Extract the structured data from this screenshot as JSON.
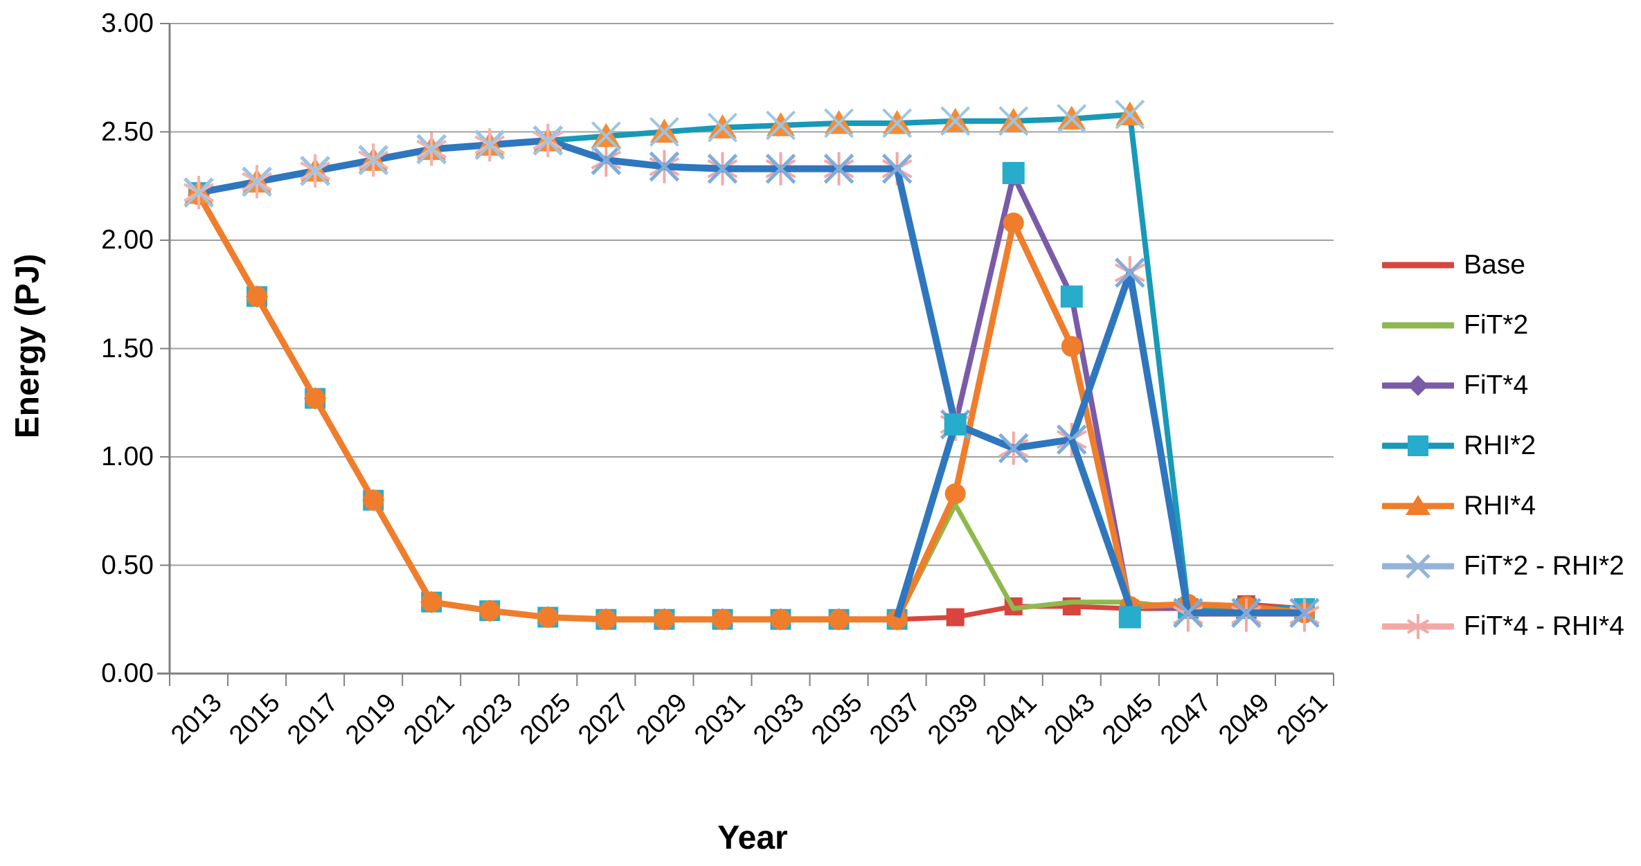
{
  "chart_data": {
    "type": "line",
    "title": "",
    "xlabel": "Year",
    "ylabel": "Energy (PJ)",
    "ylim": [
      0,
      3.0
    ],
    "grid": true,
    "legend_position": "right",
    "ytick_labels": [
      "0.00",
      "0.50",
      "1.00",
      "1.50",
      "2.00",
      "2.50",
      "3.00"
    ],
    "categories": [
      "2013",
      "2015",
      "2017",
      "2019",
      "2021",
      "2023",
      "2025",
      "2027",
      "2029",
      "2031",
      "2033",
      "2035",
      "2037",
      "2039",
      "2041",
      "2043",
      "2045",
      "2047",
      "2049",
      "2051"
    ],
    "series": [
      {
        "name": "Base",
        "color": "#D8453E",
        "chart_marker": "square-sm",
        "legend_marker": "none",
        "values": [
          2.21,
          1.74,
          1.27,
          0.8,
          0.33,
          0.29,
          0.26,
          0.25,
          0.25,
          0.25,
          0.25,
          0.25,
          0.25,
          0.26,
          0.31,
          0.31,
          0.3,
          0.3,
          0.32,
          0.3
        ]
      },
      {
        "name": "FiT*2",
        "color": "#8EB94E",
        "chart_marker": "none",
        "legend_marker": "none",
        "values": [
          2.21,
          1.74,
          1.27,
          0.8,
          0.33,
          0.29,
          0.26,
          0.25,
          0.25,
          0.25,
          0.25,
          0.25,
          0.25,
          0.78,
          0.3,
          0.33,
          0.33,
          0.3,
          0.3,
          0.29
        ]
      },
      {
        "name": "FiT*4",
        "color": "#7A5BA8",
        "chart_marker": "diamond",
        "legend_marker": "diamond",
        "values": [
          2.21,
          1.74,
          1.27,
          0.8,
          0.33,
          0.29,
          0.26,
          0.25,
          0.25,
          0.25,
          0.25,
          0.25,
          0.25,
          1.15,
          2.3,
          1.74,
          0.31,
          0.3,
          0.3,
          0.3
        ]
      },
      {
        "name": "RHI*2",
        "color": "#1899B8",
        "marker_color": "#27ACCB",
        "chart_marker": "square",
        "marker_indices": [
          0,
          17,
          18,
          19
        ],
        "legend_marker": "square",
        "values": [
          2.22,
          2.27,
          2.32,
          2.37,
          2.42,
          2.44,
          2.46,
          2.48,
          2.5,
          2.52,
          2.53,
          2.54,
          2.54,
          2.55,
          2.55,
          2.56,
          2.58,
          0.3,
          0.3,
          0.3
        ]
      },
      {
        "name": "RHI*4",
        "color": "#EF7D2C",
        "chart_marker": "circle",
        "legend_marker": "triangle",
        "values": [
          2.21,
          1.74,
          1.27,
          0.8,
          0.33,
          0.29,
          0.26,
          0.25,
          0.25,
          0.25,
          0.25,
          0.25,
          0.25,
          0.83,
          2.08,
          1.51,
          0.31,
          0.32,
          0.31,
          0.28
        ]
      },
      {
        "name": "FiT*2 - RHI*2",
        "color": "#2E77BE",
        "marker_color": "#7FACDC",
        "chart_marker": "x",
        "legend_marker": "x",
        "legend_color": "#95B3D7",
        "values": [
          2.22,
          2.27,
          2.32,
          2.37,
          2.42,
          2.44,
          2.46,
          2.37,
          2.34,
          2.33,
          2.33,
          2.33,
          2.33,
          1.15,
          1.04,
          1.08,
          1.85,
          0.28,
          0.28,
          0.28
        ]
      },
      {
        "name": "FiT*4 - RHI*4",
        "color": "#F2A9A6",
        "chart_marker": "star",
        "legend_marker": "star",
        "values": [
          2.22,
          2.27,
          2.32,
          2.37,
          2.42,
          2.44,
          2.46,
          2.37,
          2.34,
          2.33,
          2.33,
          2.33,
          2.33,
          1.15,
          1.04,
          1.08,
          1.85,
          0.27,
          0.27,
          0.27
        ]
      }
    ],
    "overlays": {
      "teal_backplates": {
        "color": "#27ACCB",
        "points": [
          [
            1,
            1.74
          ],
          [
            2,
            1.27
          ],
          [
            3,
            0.8
          ],
          [
            4,
            0.33
          ],
          [
            5,
            0.29
          ],
          [
            6,
            0.26
          ],
          [
            7,
            0.25
          ],
          [
            8,
            0.25
          ],
          [
            9,
            0.25
          ],
          [
            10,
            0.25
          ],
          [
            11,
            0.25
          ],
          [
            12,
            0.25
          ]
        ]
      },
      "top_triangles": {
        "color": "#F68B33",
        "series": "RHI*2",
        "indices": [
          0,
          1,
          2,
          3,
          4,
          5,
          6,
          7,
          8,
          9,
          10,
          11,
          12,
          13,
          14,
          15,
          16
        ]
      },
      "top_x": {
        "color": "#9BC6E4",
        "series": "RHI*2",
        "indices": [
          0,
          1,
          2,
          3,
          4,
          5,
          6,
          7,
          8,
          9,
          10,
          11,
          12,
          13,
          14,
          15,
          16
        ]
      },
      "top_stars": {
        "color": "#F3B3B0",
        "series": "RHI*2",
        "indices": [
          0,
          1,
          2,
          3,
          4,
          5,
          6
        ]
      },
      "blue_segments": {
        "color": "#2E77BE",
        "segments": [
          [
            [
              12,
              0.26
            ],
            [
              13,
              1.15
            ]
          ],
          [
            [
              15,
              1.08
            ],
            [
              16,
              0.31
            ]
          ]
        ]
      },
      "teal_squares": {
        "color": "#27ACCB",
        "points": [
          [
            13,
            1.15
          ],
          [
            14,
            2.31
          ],
          [
            15,
            1.74
          ],
          [
            16,
            0.26
          ]
        ]
      }
    }
  },
  "axes_style": {
    "grid_color": "#A0A0A0",
    "axis_color": "#808080",
    "text_color": "#000000"
  }
}
